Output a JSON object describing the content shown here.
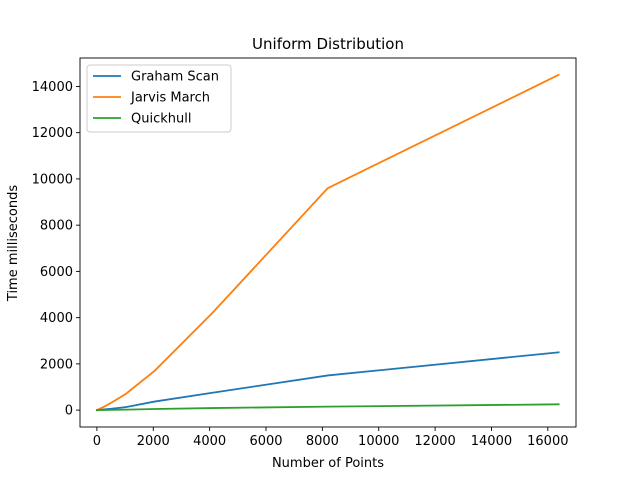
{
  "chart_data": {
    "type": "line",
    "title": "Uniform Distribution",
    "xlabel": "Number of Points",
    "ylabel": "Time milliseconds",
    "xlim": [
      -600,
      17000
    ],
    "ylim": [
      -730,
      15230
    ],
    "xticks": [
      0,
      2000,
      4000,
      6000,
      8000,
      10000,
      12000,
      14000,
      16000
    ],
    "xtick_labels": [
      "0",
      "2000",
      "4000",
      "6000",
      "8000",
      "10000",
      "12000",
      "14000",
      "16000"
    ],
    "yticks": [
      0,
      2000,
      4000,
      6000,
      8000,
      10000,
      12000,
      14000
    ],
    "ytick_labels": [
      "0",
      "2000",
      "4000",
      "6000",
      "8000",
      "10000",
      "12000",
      "14000"
    ],
    "grid": false,
    "legend_position": "top-left",
    "x": [
      0,
      256,
      512,
      1024,
      2048,
      4096,
      8192,
      16384
    ],
    "series": [
      {
        "name": "Graham Scan",
        "color": "#1f77b4",
        "values": [
          0,
          30,
          60,
          130,
          370,
          750,
          1500,
          2500
        ]
      },
      {
        "name": "Jarvis March",
        "color": "#ff7f0e",
        "values": [
          0,
          150,
          320,
          700,
          1700,
          4200,
          9600,
          14500
        ]
      },
      {
        "name": "Quickhull",
        "color": "#2ca02c",
        "values": [
          0,
          5,
          10,
          20,
          50,
          90,
          150,
          250
        ]
      }
    ]
  }
}
